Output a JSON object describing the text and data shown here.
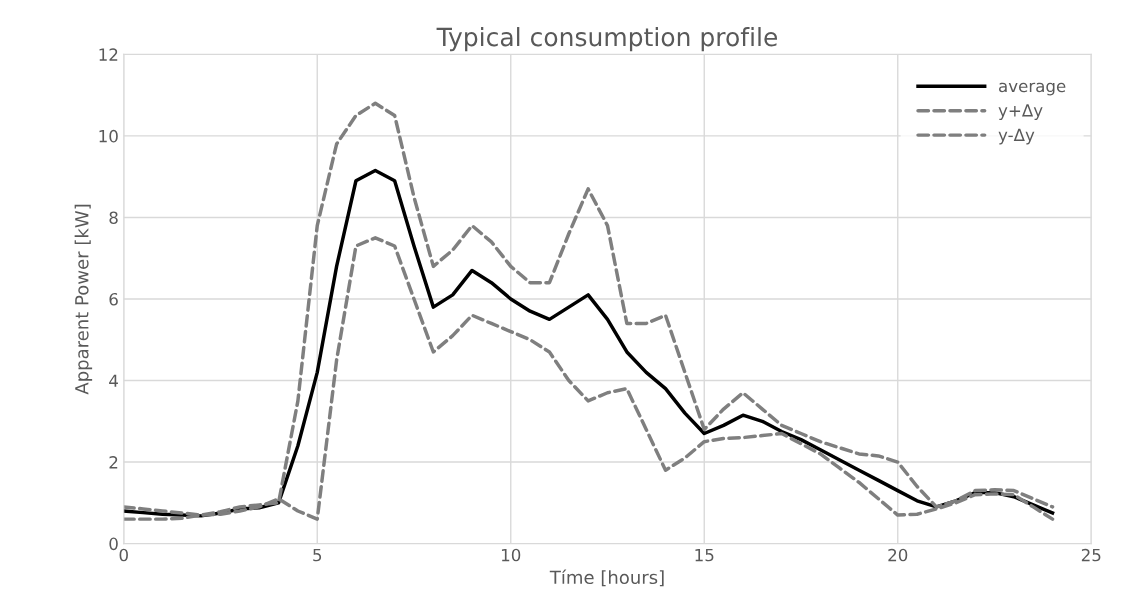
{
  "chart_data": {
    "type": "line",
    "title": "Typical consumption profile",
    "xlabel": "Tíme [hours]",
    "ylabel": "Apparent Power [kW]",
    "x": [
      0,
      0.5,
      1,
      1.5,
      2,
      2.5,
      3,
      3.5,
      4,
      4.5,
      5,
      5.5,
      6,
      6.5,
      7,
      7.5,
      8,
      8.5,
      9,
      9.5,
      10,
      10.5,
      11,
      11.5,
      12,
      12.5,
      13,
      13.5,
      14,
      14.5,
      15,
      15.5,
      16,
      16.5,
      17,
      17.5,
      18,
      18.5,
      19,
      19.5,
      20,
      20.5,
      21,
      21.5,
      22,
      22.5,
      23,
      23.5,
      24
    ],
    "series": [
      {
        "name": "average",
        "color": "#000000",
        "line_style": "solid",
        "values": [
          0.8,
          0.76,
          0.72,
          0.7,
          0.68,
          0.75,
          0.85,
          0.88,
          1.0,
          2.4,
          4.2,
          6.8,
          8.9,
          9.15,
          8.9,
          7.3,
          5.8,
          6.1,
          6.7,
          6.4,
          6.0,
          5.7,
          5.5,
          5.8,
          6.1,
          5.5,
          4.7,
          4.2,
          3.8,
          3.2,
          2.7,
          2.9,
          3.15,
          3.0,
          2.75,
          2.55,
          2.3,
          2.05,
          1.8,
          1.55,
          1.3,
          1.05,
          0.9,
          1.05,
          1.25,
          1.25,
          1.15,
          0.95,
          0.75
        ]
      },
      {
        "name": "y+Δy",
        "color": "#7f7f7f",
        "line_style": "dashed",
        "values": [
          0.9,
          0.85,
          0.8,
          0.75,
          0.7,
          0.78,
          0.9,
          0.95,
          1.0,
          3.5,
          7.8,
          9.8,
          10.5,
          10.8,
          10.5,
          8.5,
          6.8,
          7.2,
          7.8,
          7.4,
          6.8,
          6.4,
          6.4,
          7.6,
          8.7,
          7.8,
          5.4,
          5.4,
          5.6,
          4.2,
          2.8,
          3.3,
          3.7,
          3.3,
          2.9,
          2.7,
          2.5,
          2.35,
          2.2,
          2.15,
          2.0,
          1.4,
          0.9,
          1.05,
          1.3,
          1.32,
          1.3,
          1.1,
          0.9
        ]
      },
      {
        "name": "y-Δy",
        "color": "#7f7f7f",
        "line_style": "dashed",
        "values": [
          0.6,
          0.6,
          0.6,
          0.62,
          0.7,
          0.72,
          0.8,
          0.9,
          1.1,
          0.8,
          0.6,
          4.5,
          7.3,
          7.5,
          7.3,
          6.0,
          4.7,
          5.1,
          5.6,
          5.4,
          5.2,
          5.0,
          4.7,
          4.0,
          3.5,
          3.7,
          3.8,
          2.8,
          1.8,
          2.1,
          2.5,
          2.58,
          2.6,
          2.65,
          2.7,
          2.45,
          2.2,
          1.85,
          1.5,
          1.1,
          0.7,
          0.72,
          0.85,
          1.0,
          1.2,
          1.22,
          1.2,
          0.9,
          0.6
        ]
      }
    ],
    "xlim": [
      0,
      25
    ],
    "xticks": [
      0,
      5,
      10,
      15,
      20,
      25
    ],
    "ylim": [
      0,
      12
    ],
    "yticks": [
      0,
      2,
      4,
      6,
      8,
      10,
      12
    ],
    "grid": true,
    "legend": "top right",
    "marker": "none"
  }
}
